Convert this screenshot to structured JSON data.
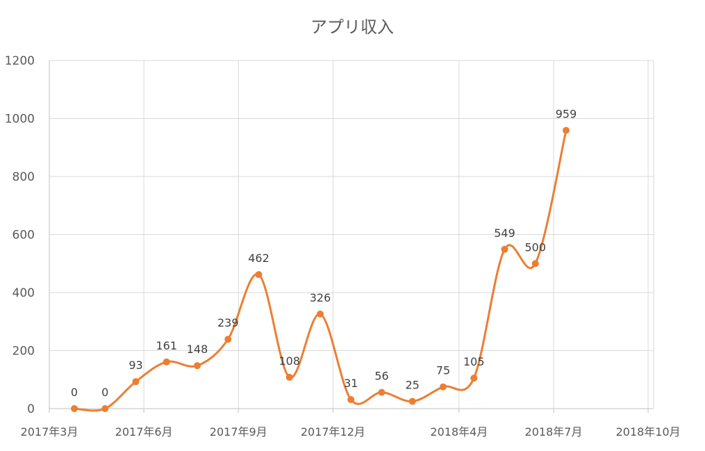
{
  "chart_data": {
    "type": "line",
    "title": "アプリ収入",
    "xlabel": "",
    "ylabel": "",
    "ylim": [
      0,
      1200
    ],
    "yticks": [
      "0",
      "200",
      "400",
      "600",
      "800",
      "1000",
      "1200"
    ],
    "xticks": [
      "2017年3月",
      "2017年6月",
      "2017年9月",
      "2017年12月",
      "2018年4月",
      "2018年7月",
      "2018年10月"
    ],
    "x": [
      "2017年3月",
      "2017年4月",
      "2017年5月",
      "2017年6月",
      "2017年7月",
      "2017年8月",
      "2017年9月",
      "2017年10月",
      "2017年11月",
      "2017年12月",
      "2018年1月",
      "2018年2月",
      "2018年3月",
      "2018年4月",
      "2018年5月",
      "2018年6月",
      "2018年7月"
    ],
    "values": [
      0,
      0,
      93,
      161,
      148,
      239,
      462,
      108,
      326,
      31,
      56,
      25,
      75,
      105,
      549,
      500,
      959
    ],
    "smooth": true,
    "grid": true,
    "legend": "none",
    "color": "#ed7d31"
  }
}
